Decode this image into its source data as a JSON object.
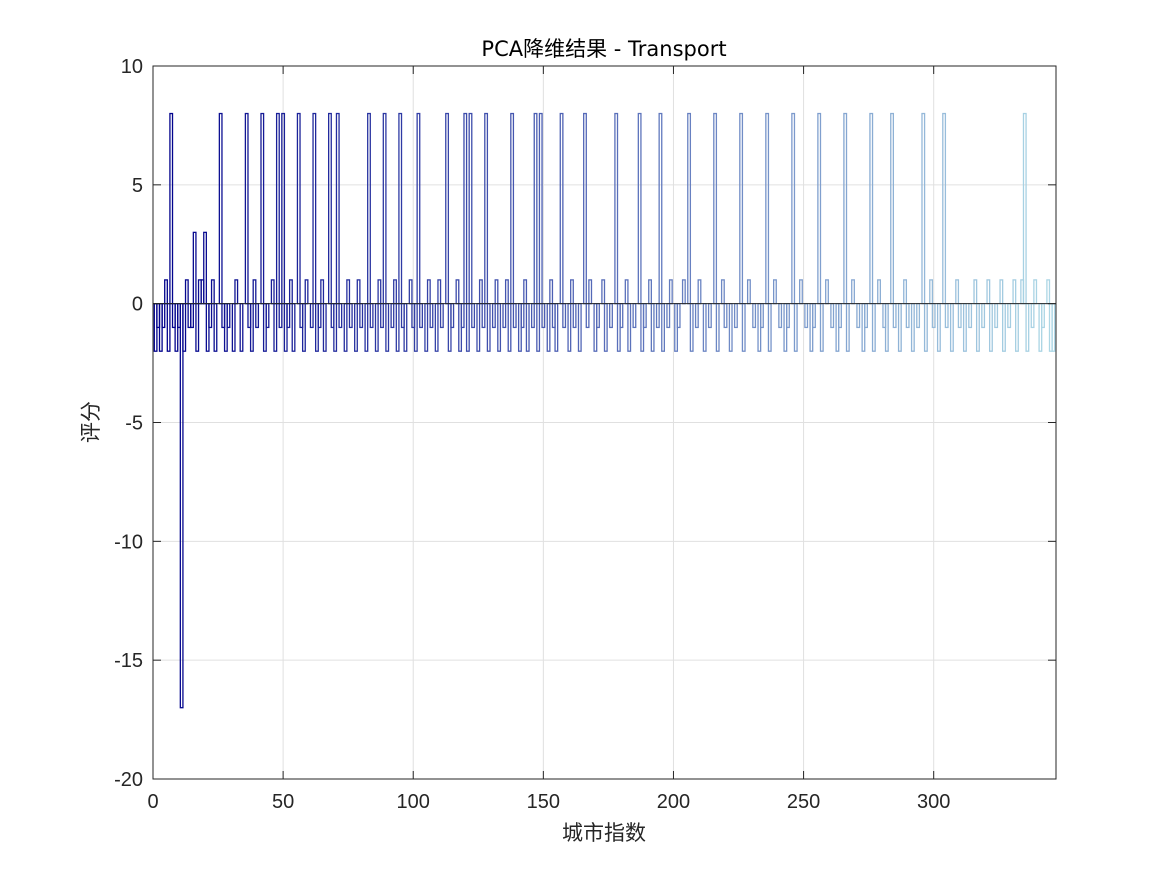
{
  "chart_data": {
    "type": "bar",
    "title": "PCA降维结果 - Transport",
    "xlabel": "城市指数",
    "ylabel": "评分",
    "xlim": [
      0,
      347
    ],
    "ylim": [
      -20,
      10
    ],
    "xticks": [
      0,
      50,
      100,
      150,
      200,
      250,
      300
    ],
    "yticks": [
      10,
      5,
      0,
      -5,
      -10,
      -15,
      -20
    ],
    "grid": true,
    "color_gradient": [
      "#00008b",
      "#add8e6"
    ],
    "bars": [
      {
        "x": 1,
        "y": -2
      },
      {
        "x": 2,
        "y": -1
      },
      {
        "x": 3,
        "y": -2
      },
      {
        "x": 4,
        "y": -1
      },
      {
        "x": 5,
        "y": 1
      },
      {
        "x": 6,
        "y": -2
      },
      {
        "x": 7,
        "y": 8
      },
      {
        "x": 8,
        "y": -1
      },
      {
        "x": 9,
        "y": -2
      },
      {
        "x": 10,
        "y": -1
      },
      {
        "x": 11,
        "y": -17
      },
      {
        "x": 12,
        "y": -2
      },
      {
        "x": 13,
        "y": 1
      },
      {
        "x": 14,
        "y": -1
      },
      {
        "x": 15,
        "y": -1
      },
      {
        "x": 16,
        "y": 3
      },
      {
        "x": 17,
        "y": -2
      },
      {
        "x": 18,
        "y": 1
      },
      {
        "x": 19,
        "y": 1
      },
      {
        "x": 20,
        "y": 3
      },
      {
        "x": 21,
        "y": -2
      },
      {
        "x": 22,
        "y": -1
      },
      {
        "x": 23,
        "y": 1
      },
      {
        "x": 24,
        "y": -2
      },
      {
        "x": 26,
        "y": 8
      },
      {
        "x": 27,
        "y": -1
      },
      {
        "x": 28,
        "y": -2
      },
      {
        "x": 29,
        "y": -1
      },
      {
        "x": 31,
        "y": -2
      },
      {
        "x": 32,
        "y": 1
      },
      {
        "x": 34,
        "y": -2
      },
      {
        "x": 36,
        "y": 8
      },
      {
        "x": 37,
        "y": -1
      },
      {
        "x": 38,
        "y": -2
      },
      {
        "x": 39,
        "y": 1
      },
      {
        "x": 40,
        "y": -1
      },
      {
        "x": 42,
        "y": 8
      },
      {
        "x": 43,
        "y": -2
      },
      {
        "x": 44,
        "y": -1
      },
      {
        "x": 46,
        "y": 1
      },
      {
        "x": 47,
        "y": -2
      },
      {
        "x": 48,
        "y": 8
      },
      {
        "x": 49,
        "y": -1
      },
      {
        "x": 50,
        "y": 8
      },
      {
        "x": 51,
        "y": -2
      },
      {
        "x": 52,
        "y": -1
      },
      {
        "x": 53,
        "y": 1
      },
      {
        "x": 54,
        "y": -2
      },
      {
        "x": 56,
        "y": 8
      },
      {
        "x": 57,
        "y": -1
      },
      {
        "x": 58,
        "y": -2
      },
      {
        "x": 59,
        "y": 1
      },
      {
        "x": 61,
        "y": -1
      },
      {
        "x": 62,
        "y": 8
      },
      {
        "x": 63,
        "y": -2
      },
      {
        "x": 64,
        "y": -1
      },
      {
        "x": 65,
        "y": 1
      },
      {
        "x": 66,
        "y": -2
      },
      {
        "x": 68,
        "y": 8
      },
      {
        "x": 69,
        "y": -1
      },
      {
        "x": 70,
        "y": -2
      },
      {
        "x": 71,
        "y": 8
      },
      {
        "x": 72,
        "y": -1
      },
      {
        "x": 74,
        "y": -2
      },
      {
        "x": 75,
        "y": 1
      },
      {
        "x": 76,
        "y": -1
      },
      {
        "x": 78,
        "y": -2
      },
      {
        "x": 79,
        "y": 1
      },
      {
        "x": 80,
        "y": -1
      },
      {
        "x": 82,
        "y": -2
      },
      {
        "x": 83,
        "y": 8
      },
      {
        "x": 84,
        "y": -1
      },
      {
        "x": 86,
        "y": -2
      },
      {
        "x": 87,
        "y": 1
      },
      {
        "x": 88,
        "y": -1
      },
      {
        "x": 89,
        "y": 8
      },
      {
        "x": 90,
        "y": -2
      },
      {
        "x": 92,
        "y": -1
      },
      {
        "x": 93,
        "y": 1
      },
      {
        "x": 94,
        "y": -2
      },
      {
        "x": 95,
        "y": 8
      },
      {
        "x": 96,
        "y": -1
      },
      {
        "x": 97,
        "y": -2
      },
      {
        "x": 99,
        "y": 1
      },
      {
        "x": 100,
        "y": -1
      },
      {
        "x": 101,
        "y": -2
      },
      {
        "x": 102,
        "y": 8
      },
      {
        "x": 103,
        "y": -1
      },
      {
        "x": 105,
        "y": -2
      },
      {
        "x": 106,
        "y": 1
      },
      {
        "x": 107,
        "y": -1
      },
      {
        "x": 109,
        "y": -2
      },
      {
        "x": 110,
        "y": 1
      },
      {
        "x": 111,
        "y": -1
      },
      {
        "x": 113,
        "y": 8
      },
      {
        "x": 114,
        "y": -2
      },
      {
        "x": 115,
        "y": -1
      },
      {
        "x": 117,
        "y": 1
      },
      {
        "x": 118,
        "y": -2
      },
      {
        "x": 119,
        "y": -1
      },
      {
        "x": 120,
        "y": 8
      },
      {
        "x": 121,
        "y": -2
      },
      {
        "x": 122,
        "y": 8
      },
      {
        "x": 123,
        "y": -1
      },
      {
        "x": 125,
        "y": -2
      },
      {
        "x": 126,
        "y": 1
      },
      {
        "x": 127,
        "y": -1
      },
      {
        "x": 128,
        "y": 8
      },
      {
        "x": 129,
        "y": -2
      },
      {
        "x": 131,
        "y": -1
      },
      {
        "x": 132,
        "y": 1
      },
      {
        "x": 133,
        "y": -2
      },
      {
        "x": 135,
        "y": -1
      },
      {
        "x": 136,
        "y": 1
      },
      {
        "x": 137,
        "y": -2
      },
      {
        "x": 138,
        "y": 8
      },
      {
        "x": 139,
        "y": -1
      },
      {
        "x": 141,
        "y": -2
      },
      {
        "x": 142,
        "y": -1
      },
      {
        "x": 143,
        "y": 1
      },
      {
        "x": 144,
        "y": -2
      },
      {
        "x": 146,
        "y": -1
      },
      {
        "x": 147,
        "y": 8
      },
      {
        "x": 148,
        "y": -2
      },
      {
        "x": 149,
        "y": 8
      },
      {
        "x": 150,
        "y": -1
      },
      {
        "x": 152,
        "y": -2
      },
      {
        "x": 153,
        "y": 1
      },
      {
        "x": 154,
        "y": -1
      },
      {
        "x": 155,
        "y": -2
      },
      {
        "x": 157,
        "y": 8
      },
      {
        "x": 158,
        "y": -1
      },
      {
        "x": 160,
        "y": -2
      },
      {
        "x": 161,
        "y": 1
      },
      {
        "x": 162,
        "y": -1
      },
      {
        "x": 164,
        "y": -2
      },
      {
        "x": 166,
        "y": 8
      },
      {
        "x": 167,
        "y": -1
      },
      {
        "x": 168,
        "y": 1
      },
      {
        "x": 170,
        "y": -2
      },
      {
        "x": 171,
        "y": -1
      },
      {
        "x": 173,
        "y": 1
      },
      {
        "x": 174,
        "y": -2
      },
      {
        "x": 176,
        "y": -1
      },
      {
        "x": 178,
        "y": 8
      },
      {
        "x": 179,
        "y": -2
      },
      {
        "x": 180,
        "y": -1
      },
      {
        "x": 182,
        "y": 1
      },
      {
        "x": 183,
        "y": -2
      },
      {
        "x": 185,
        "y": -1
      },
      {
        "x": 187,
        "y": 8
      },
      {
        "x": 188,
        "y": -2
      },
      {
        "x": 189,
        "y": -1
      },
      {
        "x": 191,
        "y": 1
      },
      {
        "x": 192,
        "y": -2
      },
      {
        "x": 194,
        "y": -1
      },
      {
        "x": 195,
        "y": 8
      },
      {
        "x": 196,
        "y": -2
      },
      {
        "x": 198,
        "y": -1
      },
      {
        "x": 199,
        "y": 1
      },
      {
        "x": 201,
        "y": -2
      },
      {
        "x": 202,
        "y": -1
      },
      {
        "x": 204,
        "y": 1
      },
      {
        "x": 206,
        "y": 8
      },
      {
        "x": 207,
        "y": -2
      },
      {
        "x": 209,
        "y": -1
      },
      {
        "x": 210,
        "y": 1
      },
      {
        "x": 212,
        "y": -2
      },
      {
        "x": 214,
        "y": -1
      },
      {
        "x": 216,
        "y": 8
      },
      {
        "x": 217,
        "y": -2
      },
      {
        "x": 219,
        "y": 1
      },
      {
        "x": 220,
        "y": -1
      },
      {
        "x": 222,
        "y": -2
      },
      {
        "x": 224,
        "y": -1
      },
      {
        "x": 226,
        "y": 8
      },
      {
        "x": 227,
        "y": -2
      },
      {
        "x": 229,
        "y": 1
      },
      {
        "x": 231,
        "y": -1
      },
      {
        "x": 233,
        "y": -2
      },
      {
        "x": 234,
        "y": -1
      },
      {
        "x": 236,
        "y": 8
      },
      {
        "x": 237,
        "y": -2
      },
      {
        "x": 239,
        "y": 1
      },
      {
        "x": 241,
        "y": -1
      },
      {
        "x": 243,
        "y": -2
      },
      {
        "x": 244,
        "y": -1
      },
      {
        "x": 246,
        "y": 8
      },
      {
        "x": 247,
        "y": -2
      },
      {
        "x": 249,
        "y": 1
      },
      {
        "x": 251,
        "y": -1
      },
      {
        "x": 253,
        "y": -2
      },
      {
        "x": 254,
        "y": -1
      },
      {
        "x": 256,
        "y": 8
      },
      {
        "x": 257,
        "y": -2
      },
      {
        "x": 259,
        "y": 1
      },
      {
        "x": 261,
        "y": -1
      },
      {
        "x": 263,
        "y": -2
      },
      {
        "x": 264,
        "y": -1
      },
      {
        "x": 266,
        "y": 8
      },
      {
        "x": 267,
        "y": -2
      },
      {
        "x": 269,
        "y": 1
      },
      {
        "x": 271,
        "y": -1
      },
      {
        "x": 273,
        "y": -2
      },
      {
        "x": 274,
        "y": -1
      },
      {
        "x": 276,
        "y": 8
      },
      {
        "x": 277,
        "y": -2
      },
      {
        "x": 279,
        "y": 1
      },
      {
        "x": 281,
        "y": -1
      },
      {
        "x": 282,
        "y": -2
      },
      {
        "x": 284,
        "y": 8
      },
      {
        "x": 285,
        "y": -1
      },
      {
        "x": 287,
        "y": -2
      },
      {
        "x": 289,
        "y": 1
      },
      {
        "x": 290,
        "y": -1
      },
      {
        "x": 292,
        "y": -2
      },
      {
        "x": 294,
        "y": -1
      },
      {
        "x": 296,
        "y": 8
      },
      {
        "x": 297,
        "y": -2
      },
      {
        "x": 299,
        "y": 1
      },
      {
        "x": 300,
        "y": -1
      },
      {
        "x": 302,
        "y": -2
      },
      {
        "x": 304,
        "y": 8
      },
      {
        "x": 305,
        "y": -1
      },
      {
        "x": 307,
        "y": -2
      },
      {
        "x": 309,
        "y": 1
      },
      {
        "x": 310,
        "y": -1
      },
      {
        "x": 312,
        "y": -2
      },
      {
        "x": 314,
        "y": -1
      },
      {
        "x": 316,
        "y": 1
      },
      {
        "x": 317,
        "y": -2
      },
      {
        "x": 319,
        "y": -1
      },
      {
        "x": 321,
        "y": 1
      },
      {
        "x": 322,
        "y": -2
      },
      {
        "x": 324,
        "y": -1
      },
      {
        "x": 326,
        "y": 1
      },
      {
        "x": 327,
        "y": -2
      },
      {
        "x": 329,
        "y": -1
      },
      {
        "x": 331,
        "y": 1
      },
      {
        "x": 332,
        "y": -2
      },
      {
        "x": 334,
        "y": 1
      },
      {
        "x": 335,
        "y": 8
      },
      {
        "x": 336,
        "y": -2
      },
      {
        "x": 338,
        "y": -1
      },
      {
        "x": 339,
        "y": 1
      },
      {
        "x": 341,
        "y": -2
      },
      {
        "x": 342,
        "y": -1
      },
      {
        "x": 344,
        "y": 1
      },
      {
        "x": 345,
        "y": -2
      },
      {
        "x": 346,
        "y": -2
      }
    ]
  }
}
